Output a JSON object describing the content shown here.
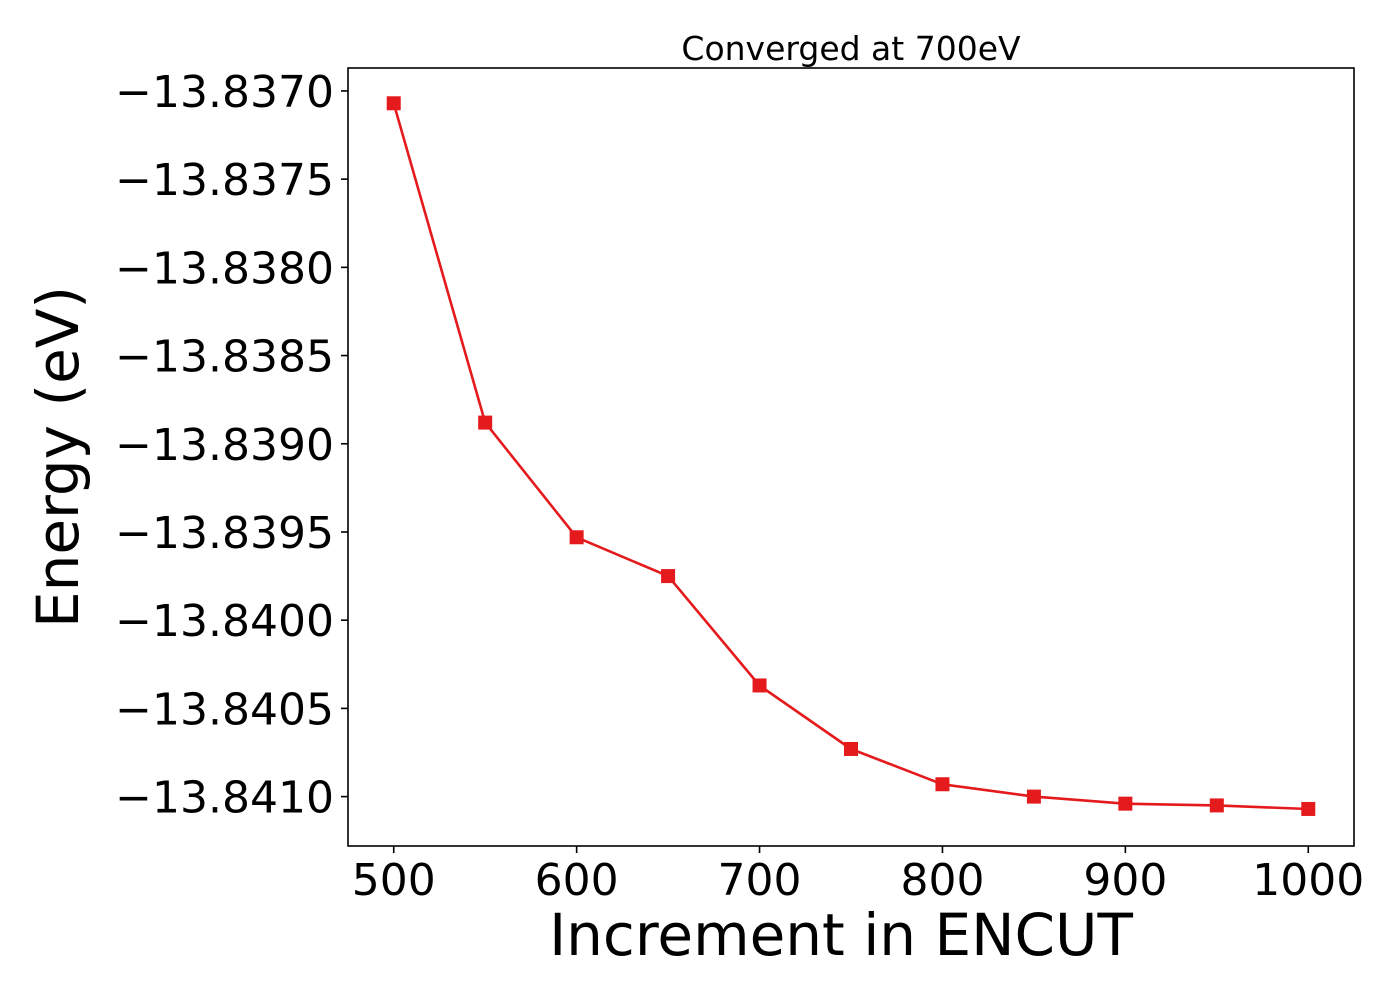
{
  "chart_data": {
    "type": "line",
    "title": "Converged at 700eV",
    "xlabel": "Increment in ENCUT",
    "ylabel": "Energy (eV)",
    "xlim": [
      475,
      1025
    ],
    "ylim": [
      -13.84128,
      -13.83687
    ],
    "xticks": [
      500,
      600,
      700,
      800,
      900,
      1000
    ],
    "yticks": [
      -13.837,
      -13.8375,
      -13.838,
      -13.8385,
      -13.839,
      -13.8395,
      -13.84,
      -13.8405,
      -13.841
    ],
    "ytick_labels": [
      "−13.8370",
      "−13.8375",
      "−13.8380",
      "−13.8385",
      "−13.8390",
      "−13.8395",
      "−13.8400",
      "−13.8405",
      "−13.8410"
    ],
    "grid": false,
    "legend": null,
    "series": [
      {
        "color": "#e41a1c",
        "marker": "square",
        "x": [
          500,
          550,
          600,
          650,
          700,
          750,
          800,
          850,
          900,
          950,
          1000
        ],
        "y": [
          -13.83707,
          -13.83888,
          -13.83953,
          -13.83975,
          -13.84037,
          -13.84073,
          -13.84093,
          -13.841,
          -13.84104,
          -13.84105,
          -13.84107
        ]
      }
    ]
  }
}
